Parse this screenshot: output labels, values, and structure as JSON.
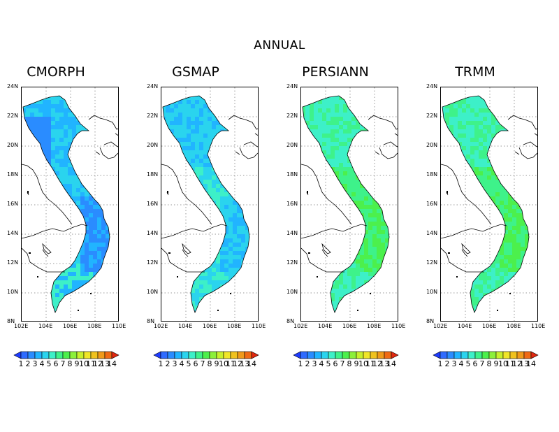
{
  "title": "ANNUAL",
  "panels": [
    {
      "name": "CMORPH",
      "field": "low"
    },
    {
      "name": "GSMAP",
      "field": "mid"
    },
    {
      "name": "PERSIANN",
      "field": "high"
    },
    {
      "name": "TRMM",
      "field": "high"
    }
  ],
  "axes": {
    "lat_labels": [
      "24N",
      "22N",
      "20N",
      "18N",
      "16N",
      "14N",
      "12N",
      "10N",
      "8N"
    ],
    "lon_labels": [
      "102E",
      "104E",
      "106E",
      "108E",
      "110E"
    ]
  },
  "colorbar": {
    "labels": [
      "1",
      "2",
      "3",
      "4",
      "5",
      "6",
      "7",
      "8",
      "9",
      "10",
      "11",
      "12",
      "13",
      "14"
    ],
    "colors": [
      "#1e3cff",
      "#2f6bff",
      "#2a8cff",
      "#21b4ff",
      "#2ad4ee",
      "#3df0c8",
      "#3ef28a",
      "#4cf04c",
      "#8cf03a",
      "#c8f02c",
      "#f0e628",
      "#f0c21e",
      "#f09a1a",
      "#f06a14",
      "#e02810"
    ]
  },
  "legend_note": ""
}
